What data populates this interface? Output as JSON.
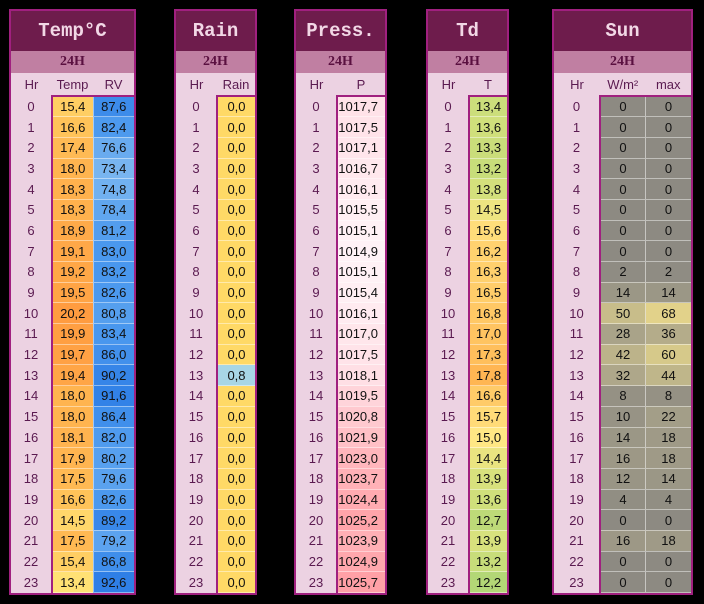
{
  "period_label": "24H",
  "hours": [
    0,
    1,
    2,
    3,
    4,
    5,
    6,
    7,
    8,
    9,
    10,
    11,
    12,
    13,
    14,
    15,
    16,
    17,
    18,
    19,
    20,
    21,
    22,
    23
  ],
  "panels": [
    {
      "id": "temp",
      "title": "Temp°C",
      "columns": [
        "Hr",
        "Temp",
        "RV"
      ],
      "values": [
        [
          "15,4",
          "16,6",
          "17,4",
          "18,0",
          "18,3",
          "18,3",
          "18,9",
          "19,1",
          "19,2",
          "19,5",
          "20,2",
          "19,9",
          "19,7",
          "19,4",
          "18,0",
          "18,0",
          "18,1",
          "17,9",
          "17,5",
          "16,6",
          "14,5",
          "17,5",
          "15,4",
          "13,4"
        ],
        [
          "87,6",
          "82,4",
          "76,6",
          "73,4",
          "74,8",
          "78,4",
          "81,2",
          "83,0",
          "83,2",
          "82,6",
          "80,8",
          "83,4",
          "86,0",
          "90,2",
          "91,6",
          "86,4",
          "82,0",
          "80,2",
          "79,6",
          "82,6",
          "89,2",
          "79,2",
          "86,8",
          "92,6"
        ]
      ]
    },
    {
      "id": "rain",
      "title": "Rain",
      "columns": [
        "Hr",
        "Rain"
      ],
      "values": [
        [
          "0,0",
          "0,0",
          "0,0",
          "0,0",
          "0,0",
          "0,0",
          "0,0",
          "0,0",
          "0,0",
          "0,0",
          "0,0",
          "0,0",
          "0,0",
          "0,8",
          "0,0",
          "0,0",
          "0,0",
          "0,0",
          "0,0",
          "0,0",
          "0,0",
          "0,0",
          "0,0",
          "0,0"
        ]
      ]
    },
    {
      "id": "press",
      "title": "Press.",
      "columns": [
        "Hr",
        "P"
      ],
      "values": [
        [
          "1017,7",
          "1017,5",
          "1017,1",
          "1016,7",
          "1016,1",
          "1015,5",
          "1015,1",
          "1014,9",
          "1015,1",
          "1015,4",
          "1016,1",
          "1017,0",
          "1017,5",
          "1018,1",
          "1019,5",
          "1020,8",
          "1021,9",
          "1023,0",
          "1023,7",
          "1024,4",
          "1025,2",
          "1023,9",
          "1024,9",
          "1025,7"
        ]
      ]
    },
    {
      "id": "td",
      "title": "Td",
      "columns": [
        "Hr",
        "T"
      ],
      "values": [
        [
          "13,4",
          "13,6",
          "13,3",
          "13,2",
          "13,8",
          "14,5",
          "15,6",
          "16,2",
          "16,3",
          "16,5",
          "16,8",
          "17,0",
          "17,3",
          "17,8",
          "16,6",
          "15,7",
          "15,0",
          "14,4",
          "13,9",
          "13,6",
          "12,7",
          "13,9",
          "13,2",
          "12,2"
        ]
      ]
    },
    {
      "id": "sun",
      "title": "Sun",
      "columns": [
        "Hr",
        "W/m²",
        "max"
      ],
      "values": [
        [
          "0",
          "0",
          "0",
          "0",
          "0",
          "0",
          "0",
          "0",
          "2",
          "14",
          "50",
          "28",
          "42",
          "32",
          "8",
          "10",
          "14",
          "16",
          "12",
          "4",
          "0",
          "16",
          "0",
          "0"
        ],
        [
          "0",
          "0",
          "0",
          "0",
          "0",
          "0",
          "0",
          "0",
          "2",
          "14",
          "68",
          "36",
          "60",
          "44",
          "8",
          "22",
          "18",
          "18",
          "14",
          "4",
          "0",
          "18",
          "0",
          "0"
        ]
      ]
    }
  ]
}
